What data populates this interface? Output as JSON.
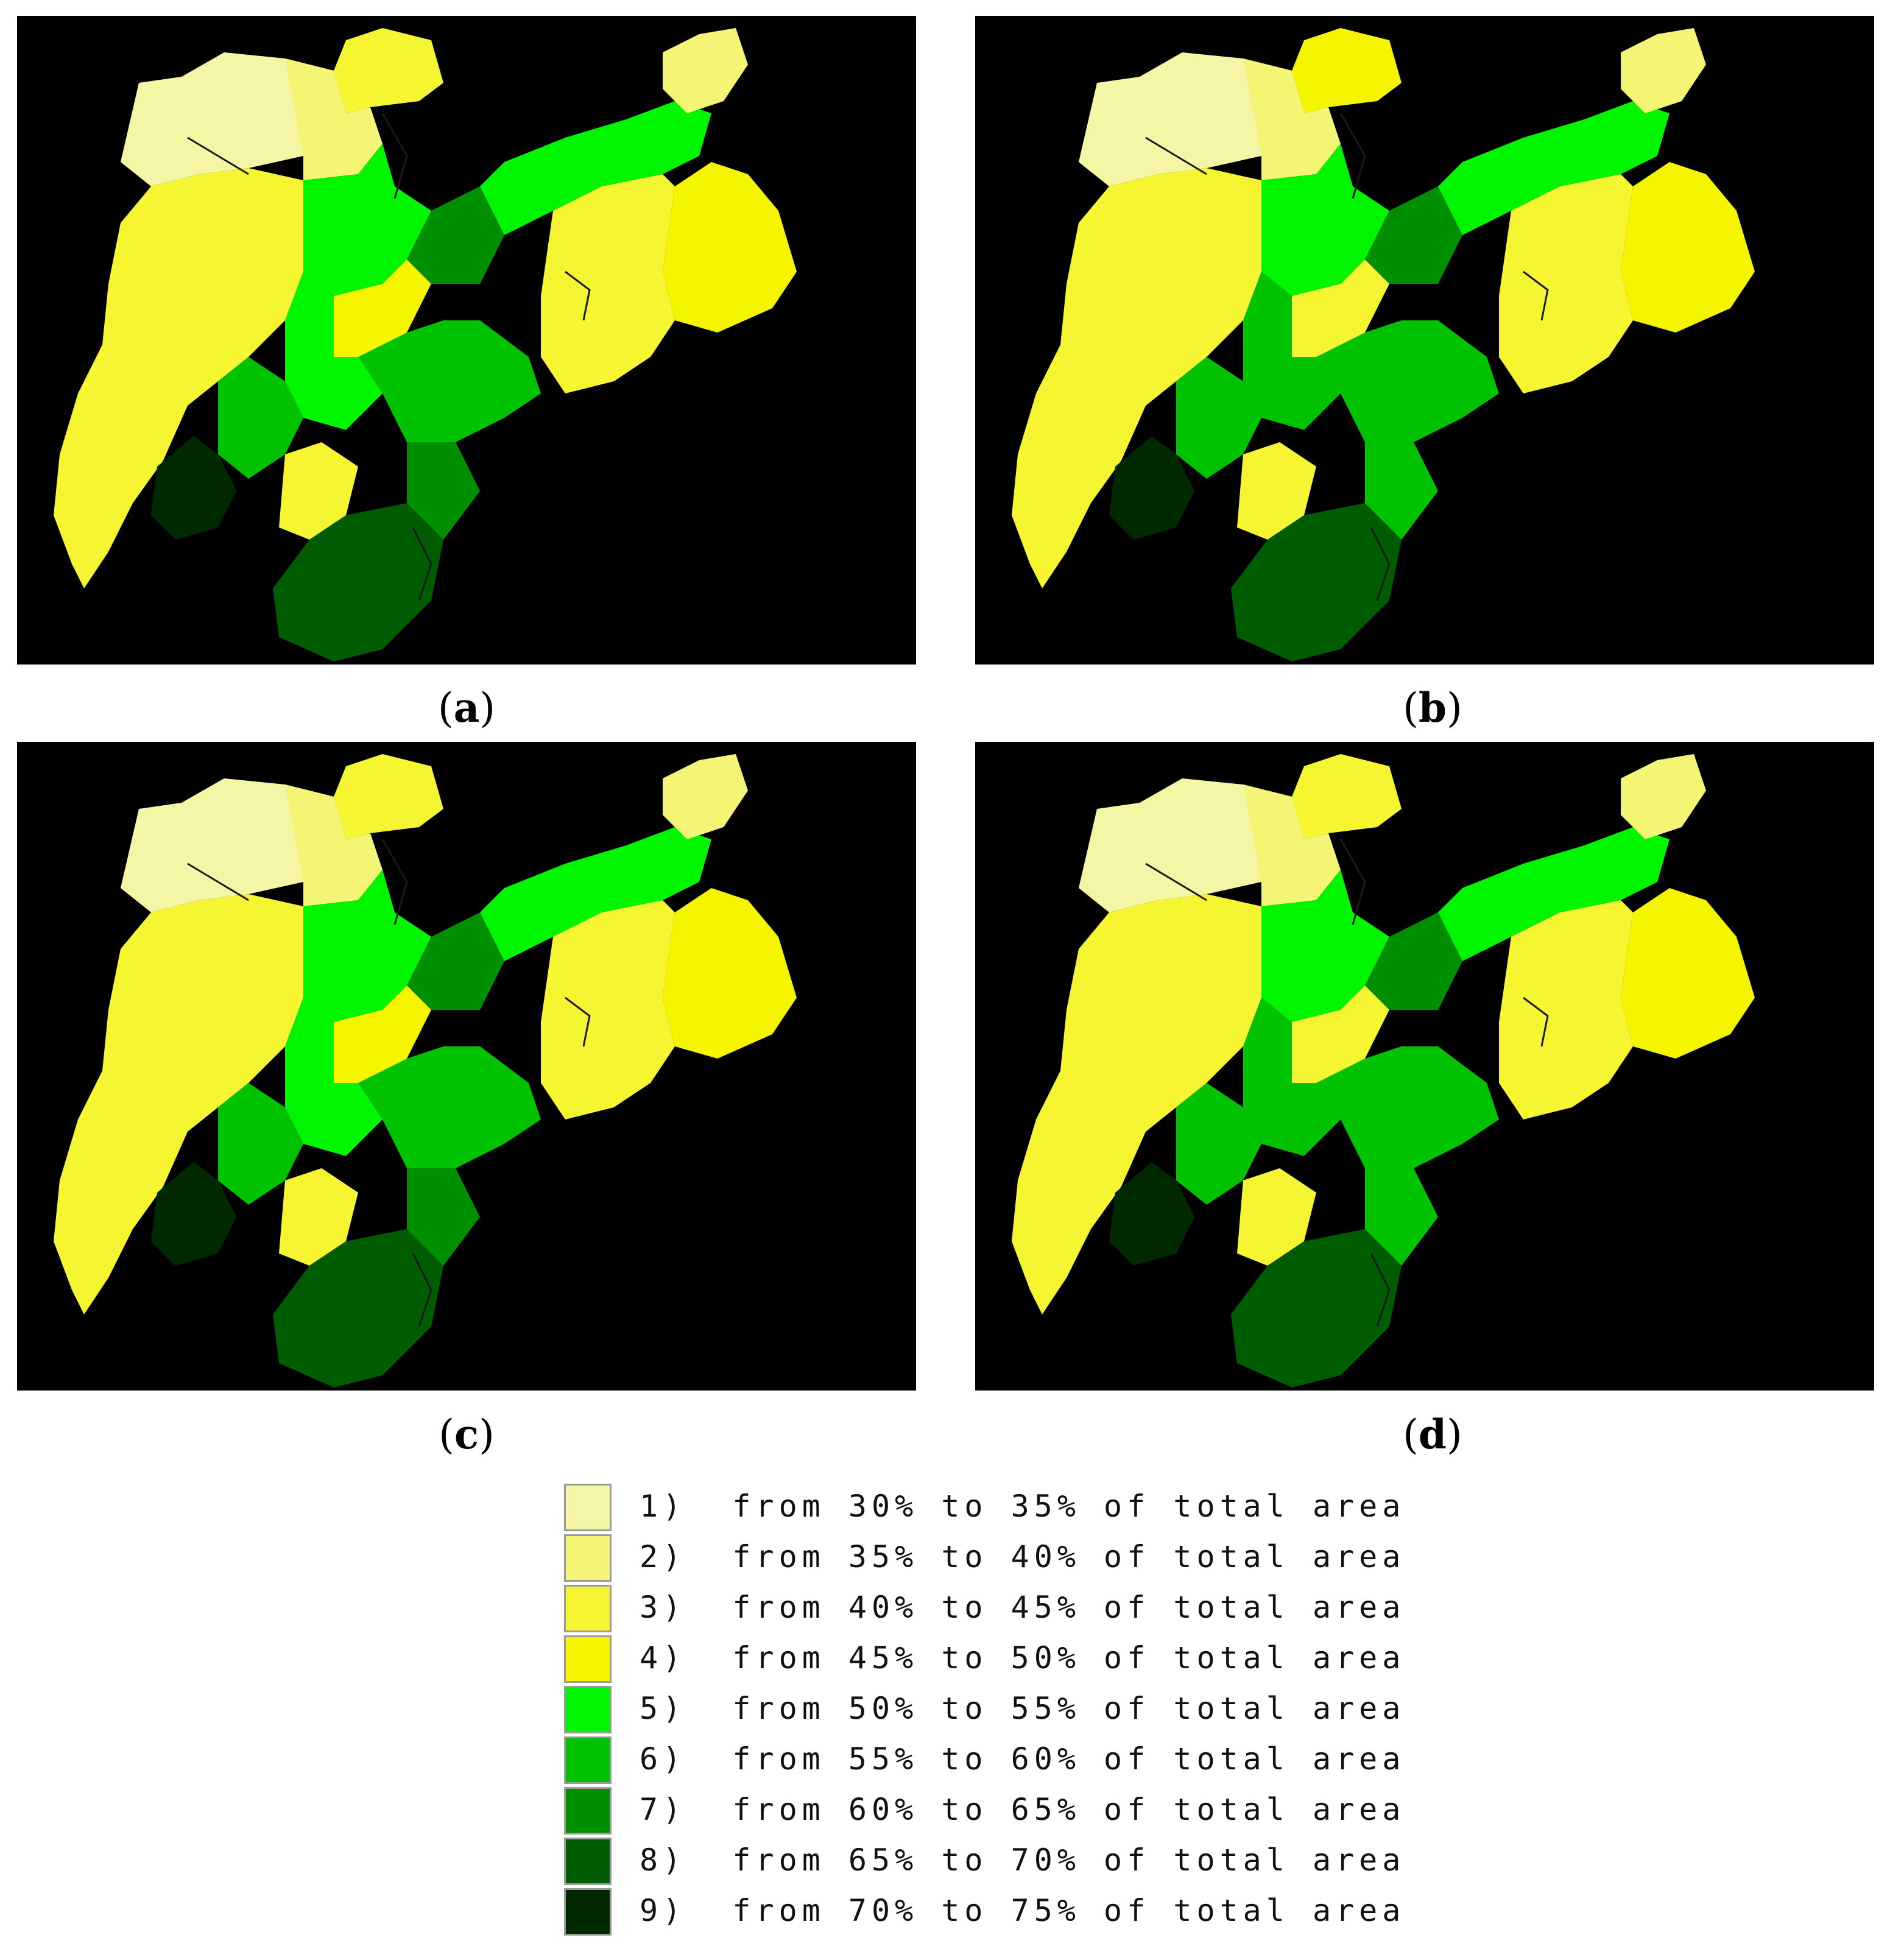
{
  "panels": [
    {
      "id": "a",
      "label": "a"
    },
    {
      "id": "b",
      "label": "b"
    },
    {
      "id": "c",
      "label": "c"
    },
    {
      "id": "d",
      "label": "d"
    }
  ],
  "legend": {
    "items": [
      {
        "class": 1,
        "label": "1)  from 30% to 35% of total area",
        "color": "#f5f5a6"
      },
      {
        "class": 2,
        "label": "2)  from 35% to 40% of total area",
        "color": "#f5f575"
      },
      {
        "class": 3,
        "label": "3)  from 40% to 45% of total area",
        "color": "#f5f532"
      },
      {
        "class": 4,
        "label": "4)  from 45% to 50% of total area",
        "color": "#f5f500"
      },
      {
        "class": 5,
        "label": "5)  from 50% to 55% of total area",
        "color": "#00f500"
      },
      {
        "class": 6,
        "label": "6)  from 55% to 60% of total area",
        "color": "#00c200"
      },
      {
        "class": 7,
        "label": "7)  from 60% to 65% of total area",
        "color": "#008f00"
      },
      {
        "class": 8,
        "label": "8)  from 65% to 70% of total area",
        "color": "#005c00"
      },
      {
        "class": 9,
        "label": "9)  from 70% to 75% of total area",
        "color": "#002900"
      }
    ]
  },
  "map_style": {
    "background": "#000000"
  }
}
